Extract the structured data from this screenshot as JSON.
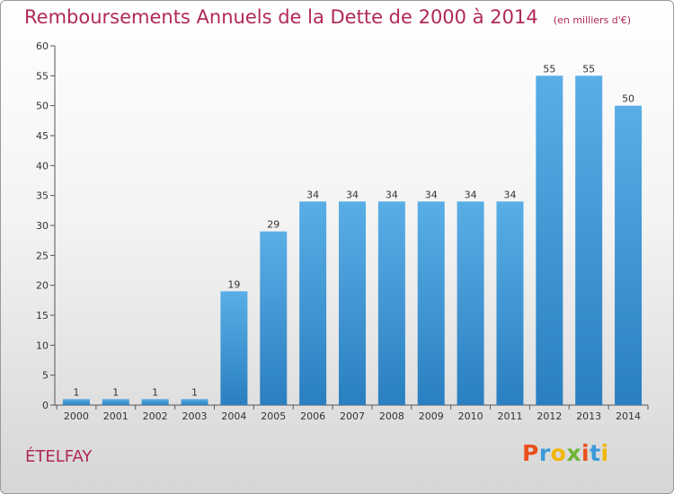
{
  "header": {
    "title": "Remboursements Annuels de la Dette de 2000 à 2014",
    "subtitle": "(en milliers d'€)"
  },
  "footer": {
    "place": "ÉTELFAY",
    "brand": "Proxiti",
    "brand_colors": [
      "#e9501e",
      "#3a9ad9",
      "#f2b705",
      "#6fb536",
      "#e9501e",
      "#3a9ad9",
      "#f2b705"
    ]
  },
  "chart_data": {
    "type": "bar",
    "categories": [
      "2000",
      "2001",
      "2002",
      "2003",
      "2004",
      "2005",
      "2006",
      "2007",
      "2008",
      "2009",
      "2010",
      "2011",
      "2012",
      "2013",
      "2014"
    ],
    "values": [
      1,
      1,
      1,
      1,
      19,
      29,
      34,
      34,
      34,
      34,
      34,
      34,
      55,
      55,
      50
    ],
    "title": "Remboursements Annuels de la Dette de 2000 à 2014",
    "subtitle": "(en milliers d'€)",
    "ylim": [
      0,
      60
    ],
    "yticks": [
      0,
      5,
      10,
      15,
      20,
      25,
      30,
      35,
      40,
      45,
      50,
      55,
      60
    ],
    "grid": false,
    "data_labels": true,
    "bar_color_top": "#5aaee6",
    "bar_color_bottom": "#2a7fc0"
  }
}
